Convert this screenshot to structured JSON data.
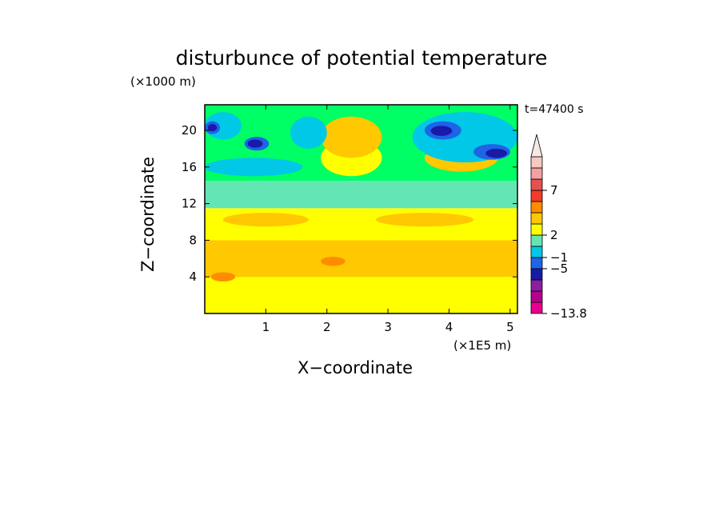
{
  "chart_data": {
    "type": "heatmap",
    "title": "disturbunce of potential temperature",
    "y_unit": "(×1000 m)",
    "x_unit": "(×1E5 m)",
    "xlabel": "X−coordinate",
    "ylabel": "Z−coordinate",
    "time_label": "t=47400 s",
    "xlim": [
      0,
      5.12
    ],
    "ylim": [
      0,
      22.8
    ],
    "x_ticks": [
      1,
      2,
      3,
      4,
      5
    ],
    "x_tick_labels": [
      "1",
      "2",
      "3",
      "4",
      "5"
    ],
    "y_ticks": [
      4,
      8,
      12,
      16,
      20
    ],
    "y_tick_labels": [
      "4",
      "8",
      "12",
      "16",
      "20"
    ],
    "colorbar": {
      "tick_labels": [
        "7",
        "2",
        "−1",
        "−5",
        "−13.8"
      ],
      "colors_bottom_to_top": [
        "#e8008c",
        "#b4008c",
        "#8c1ea0",
        "#1a1aa8",
        "#1e64e6",
        "#00c8e6",
        "#64e6b4",
        "#ffff00",
        "#ffc800",
        "#ff8c00",
        "#f03c28",
        "#e85050",
        "#f4a0a0",
        "#f8c8c0"
      ]
    },
    "regions": [
      {
        "level": "2",
        "x": [
          0.0,
          5.12
        ],
        "y": [
          0.0,
          11.5
        ],
        "color": "#ffff00"
      },
      {
        "level": "1",
        "x": [
          0.0,
          5.12
        ],
        "y": [
          11.5,
          14.5
        ],
        "color": "#64e6b4"
      },
      {
        "level": "0",
        "x": [
          0.0,
          5.12
        ],
        "y": [
          14.5,
          22.8
        ],
        "color": "#00ff64"
      },
      {
        "level": "3",
        "x": [
          0.0,
          5.12
        ],
        "y": [
          4.0,
          8.0
        ],
        "color": "#ffc800"
      },
      {
        "level": "3",
        "x": [
          0.3,
          1.7
        ],
        "y": [
          9.5,
          11.0
        ],
        "color": "#ffc800"
      },
      {
        "level": "3",
        "x": [
          2.8,
          4.4
        ],
        "y": [
          9.5,
          11.0
        ],
        "color": "#ffc800"
      },
      {
        "level": "4",
        "x": [
          1.9,
          2.3
        ],
        "y": [
          5.2,
          6.2
        ],
        "color": "#ff8c00"
      },
      {
        "level": "4",
        "x": [
          0.1,
          0.5
        ],
        "y": [
          3.5,
          4.5
        ],
        "color": "#ff8c00"
      },
      {
        "level": "2",
        "x": [
          1.9,
          2.9
        ],
        "y": [
          15.0,
          19.0
        ],
        "color": "#ffff00"
      },
      {
        "level": "3",
        "x": [
          1.9,
          2.9
        ],
        "y": [
          17.0,
          21.5
        ],
        "color": "#ffc800"
      },
      {
        "level": "3",
        "x": [
          3.6,
          4.8
        ],
        "y": [
          15.5,
          18.5
        ],
        "color": "#ffc800"
      },
      {
        "level": "-1",
        "x": [
          0.0,
          1.6
        ],
        "y": [
          15.0,
          17.0
        ],
        "color": "#00c8e6"
      },
      {
        "level": "-1",
        "x": [
          1.4,
          2.0
        ],
        "y": [
          18.0,
          21.5
        ],
        "color": "#00c8e6"
      },
      {
        "level": "-1",
        "x": [
          0.0,
          0.6
        ],
        "y": [
          19.0,
          22.0
        ],
        "color": "#00c8e6"
      },
      {
        "level": "-2",
        "x": [
          0.0,
          0.25
        ],
        "y": [
          19.6,
          21.0
        ],
        "color": "#1e64e6"
      },
      {
        "level": "-3",
        "x": [
          0.05,
          0.2
        ],
        "y": [
          19.9,
          20.7
        ],
        "color": "#1a1aa8"
      },
      {
        "level": "-2",
        "x": [
          0.65,
          1.05
        ],
        "y": [
          17.8,
          19.3
        ],
        "color": "#1e64e6"
      },
      {
        "level": "-3",
        "x": [
          0.7,
          0.95
        ],
        "y": [
          18.1,
          19.0
        ],
        "color": "#1a1aa8"
      },
      {
        "level": "-1",
        "x": [
          3.4,
          5.12
        ],
        "y": [
          16.5,
          22.0
        ],
        "color": "#00c8e6"
      },
      {
        "level": "-2",
        "x": [
          3.6,
          4.2
        ],
        "y": [
          19.0,
          21.0
        ],
        "color": "#1e64e6"
      },
      {
        "level": "-3",
        "x": [
          3.7,
          4.05
        ],
        "y": [
          19.4,
          20.5
        ],
        "color": "#1a1aa8"
      },
      {
        "level": "-2",
        "x": [
          4.4,
          5.0
        ],
        "y": [
          16.8,
          18.5
        ],
        "color": "#1e64e6"
      },
      {
        "level": "-3",
        "x": [
          4.6,
          4.95
        ],
        "y": [
          17.0,
          18.0
        ],
        "color": "#1a1aa8"
      }
    ]
  }
}
